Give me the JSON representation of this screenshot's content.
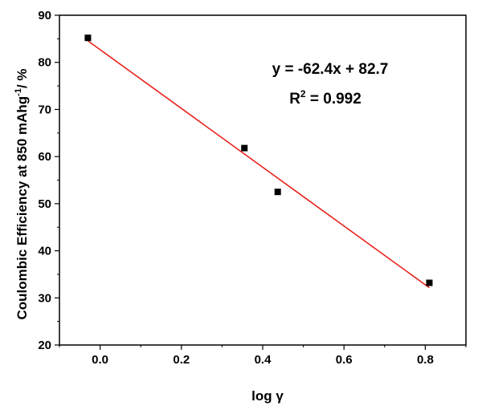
{
  "chart_data": {
    "type": "scatter",
    "xlabel_main": "log ",
    "xlabel_symbol": "γ",
    "ylabel_main": "Coulombic Efficiency at 850 mAhg",
    "ylabel_sup": "-1",
    "ylabel_tail": "/ %",
    "xlim": [
      -0.1,
      0.9
    ],
    "ylim": [
      20,
      90
    ],
    "xticks": [
      0.0,
      0.2,
      0.4,
      0.6,
      0.8
    ],
    "xtick_labels": [
      "0.0",
      "0.2",
      "0.4",
      "0.6",
      "0.8"
    ],
    "yticks": [
      20,
      30,
      40,
      50,
      60,
      70,
      80,
      90
    ],
    "ytick_labels": [
      "20",
      "30",
      "40",
      "50",
      "60",
      "70",
      "80",
      "90"
    ],
    "points": [
      {
        "x": -0.03,
        "y": 85.2
      },
      {
        "x": 0.355,
        "y": 61.8
      },
      {
        "x": 0.437,
        "y": 52.5
      },
      {
        "x": 0.81,
        "y": 33.2
      }
    ],
    "fit": {
      "slope": -62.4,
      "intercept": 82.7,
      "x_range": [
        -0.03,
        0.81
      ],
      "color": "#e8201a"
    },
    "marker_color": "#000000",
    "equation_text": "y = -62.4x + 82.7",
    "r2_prefix": "R",
    "r2_sup": "2",
    "r2_suffix": " = 0.992",
    "grid": false
  }
}
